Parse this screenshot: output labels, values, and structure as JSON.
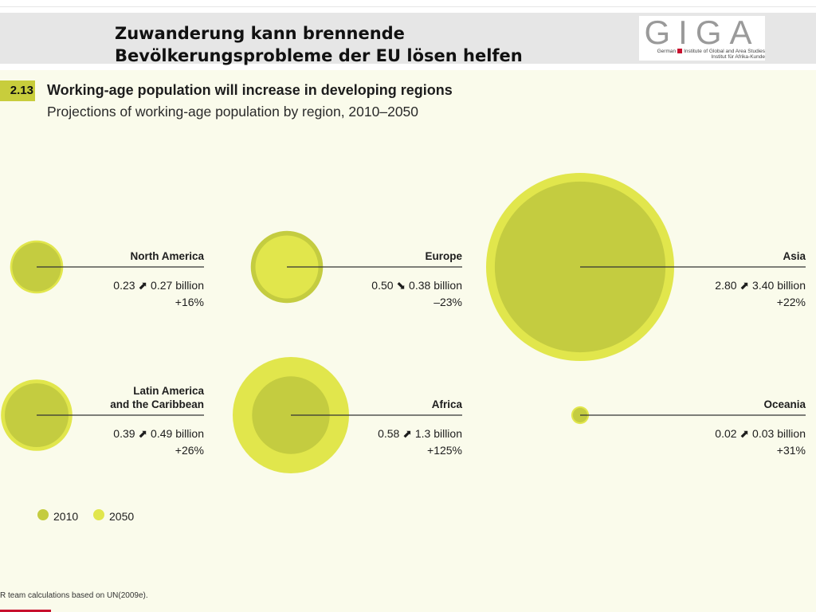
{
  "slide": {
    "title_line1": "Zuwanderung kann brennende",
    "title_line2": "Bevölkerungsprobleme der EU lösen helfen"
  },
  "logo": {
    "word": "GIGA",
    "line1_left": "German",
    "line1_right": "Institute of Global and Area Studies",
    "line2": "Institut für Afrika-Kunde",
    "accent": "#c8102e"
  },
  "figure": {
    "number": "2.13",
    "title": "Working-age population will increase in developing regions",
    "subtitle": "Projections of working-age population by region, 2010–2050",
    "source": "R team calculations based on UN(2009e)."
  },
  "colors": {
    "color_2010": "#c4cc40",
    "color_2050": "#e1e64c",
    "leader": "#333333",
    "panel": "#fafbeb"
  },
  "chart_data": {
    "type": "bubble",
    "unit": "billion",
    "years": [
      "2010",
      "2050"
    ],
    "legend": [
      {
        "label": "2010",
        "color": "#c4cc40"
      },
      {
        "label": "2050",
        "color": "#e1e64c"
      }
    ],
    "regions": [
      {
        "name_lines": [
          "North America"
        ],
        "v2010": 0.23,
        "v2050": 0.27,
        "trend": "up",
        "value_text": "0.23 ⬈ 0.27 billion",
        "change_text": "+16%"
      },
      {
        "name_lines": [
          "Europe"
        ],
        "v2010": 0.5,
        "v2050": 0.38,
        "trend": "down",
        "value_text": "0.50 ⬊ 0.38 billion",
        "change_text": "–23%"
      },
      {
        "name_lines": [
          "Asia"
        ],
        "v2010": 2.8,
        "v2050": 3.4,
        "trend": "up",
        "value_text": "2.80 ⬈ 3.40 billion",
        "change_text": "+22%"
      },
      {
        "name_lines": [
          "Latin America",
          "and the Caribbean"
        ],
        "v2010": 0.39,
        "v2050": 0.49,
        "trend": "up",
        "value_text": "0.39 ⬈ 0.49 billion",
        "change_text": "+26%"
      },
      {
        "name_lines": [
          "Africa"
        ],
        "v2010": 0.58,
        "v2050": 1.3,
        "trend": "up",
        "value_text": "0.58 ⬈ 1.3 billion",
        "change_text": "+125%"
      },
      {
        "name_lines": [
          "Oceania"
        ],
        "v2010": 0.02,
        "v2050": 0.03,
        "trend": "up",
        "value_text": "0.02 ⬈ 0.03 billion",
        "change_text": "+31%"
      }
    ]
  }
}
